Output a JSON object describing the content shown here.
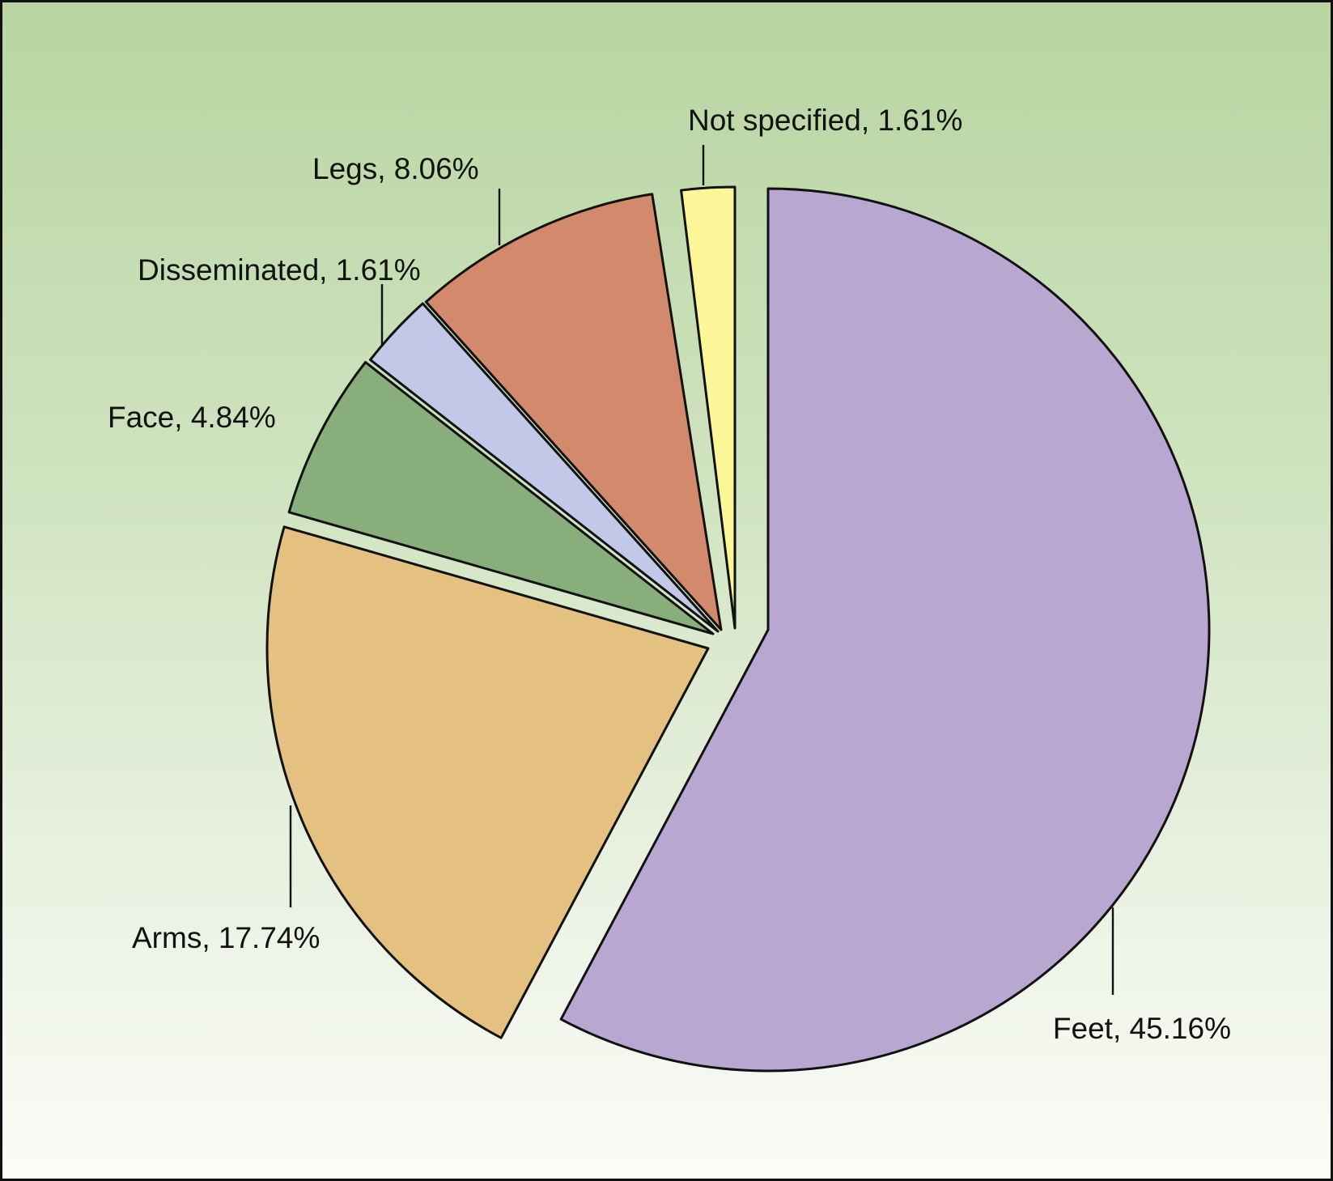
{
  "chart_data": {
    "type": "pie",
    "slices": [
      {
        "label": "Feet, 45.16%",
        "category": "Feet",
        "value": 45.16,
        "color": "#b8a7d0"
      },
      {
        "label": "Arms, 17.74%",
        "category": "Arms",
        "value": 17.74,
        "color": "#e4c081"
      },
      {
        "label": "Face, 4.84%",
        "category": "Face",
        "value": 4.84,
        "color": "#88ae7c"
      },
      {
        "label": "Disseminated, 1.61%",
        "category": "Disseminated",
        "value": 1.61,
        "color": "#c2c8e8"
      },
      {
        "label": "Legs, 8.06%",
        "category": "Legs",
        "value": 8.06,
        "color": "#d3896b"
      },
      {
        "label": "Not specified, 1.61%",
        "category": "Not specified",
        "value": 1.61,
        "color": "#fbf697"
      }
    ]
  }
}
